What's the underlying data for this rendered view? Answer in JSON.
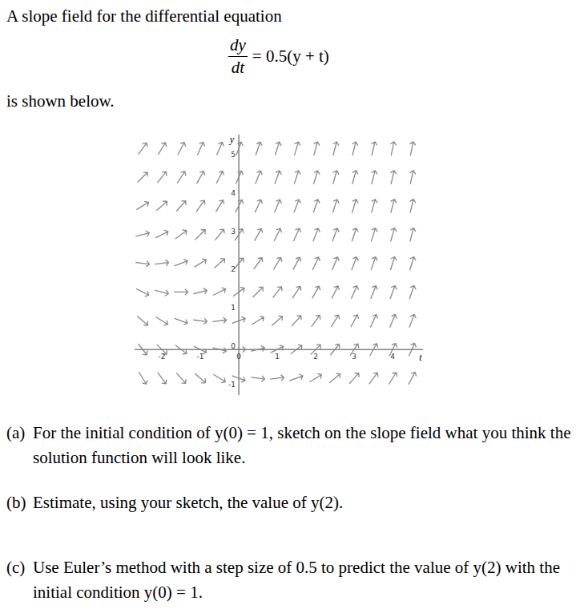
{
  "header": {
    "text": "A slope field for the differential equation",
    "equation": {
      "numerator": "dy",
      "denominator": "dt",
      "rhs": "= 0.5(y + t)"
    },
    "after": "is shown below."
  },
  "chart_data": {
    "type": "vector_field",
    "x_label": "t",
    "y_label": "y",
    "color": "#888888",
    "grid": false,
    "xlim": [
      -2.7,
      4.8
    ],
    "ylim": [
      -1.2,
      5.6
    ],
    "xticks": [
      -2,
      -1,
      0,
      1,
      2,
      3,
      4
    ],
    "yticks": [
      -1,
      0,
      1,
      2,
      3,
      4,
      5
    ],
    "x": [
      -2.5,
      -2,
      -1.5,
      -1,
      -0.5,
      0,
      0.5,
      1,
      1.5,
      2,
      2.5,
      3,
      3.5,
      4,
      4.5
    ],
    "y": [
      -0.75,
      0,
      0.75,
      1.5,
      2.25,
      3,
      3.75,
      4.5,
      5.25
    ],
    "slopes": [
      [
        -1.625,
        -1.375,
        -1.125,
        -0.875,
        -0.625,
        -0.375,
        -0.125,
        0.125,
        0.375,
        0.625,
        0.875,
        1.125,
        1.375,
        1.625,
        1.875
      ],
      [
        -1.25,
        -1,
        -0.75,
        -0.5,
        -0.25,
        0,
        0.25,
        0.5,
        0.75,
        1,
        1.25,
        1.5,
        1.75,
        2,
        2.25
      ],
      [
        -0.875,
        -0.625,
        -0.375,
        -0.125,
        0.125,
        0.375,
        0.625,
        0.875,
        1.125,
        1.375,
        1.625,
        1.875,
        2.125,
        2.375,
        2.625
      ],
      [
        -0.5,
        -0.25,
        0,
        0.25,
        0.5,
        0.75,
        1,
        1.25,
        1.5,
        1.75,
        2,
        2.25,
        2.5,
        2.75,
        3
      ],
      [
        -0.125,
        0.125,
        0.375,
        0.625,
        0.875,
        1.125,
        1.375,
        1.625,
        1.875,
        2.125,
        2.375,
        2.625,
        2.875,
        3.125,
        3.375
      ],
      [
        0.25,
        0.5,
        0.75,
        1,
        1.25,
        1.5,
        1.75,
        2,
        2.25,
        2.5,
        2.75,
        3,
        3.25,
        3.5,
        3.75
      ],
      [
        0.625,
        0.875,
        1.125,
        1.375,
        1.625,
        1.875,
        2.125,
        2.375,
        2.625,
        2.875,
        3.125,
        3.375,
        3.625,
        3.875,
        4.125
      ],
      [
        1,
        1.25,
        1.5,
        1.75,
        2,
        2.25,
        2.5,
        2.75,
        3,
        3.25,
        3.5,
        3.75,
        4,
        4.25,
        4.5
      ],
      [
        1.375,
        1.625,
        1.875,
        2.125,
        2.375,
        2.625,
        2.875,
        3.125,
        3.375,
        3.625,
        3.875,
        4.125,
        4.375,
        4.625,
        4.875
      ]
    ]
  },
  "questions": [
    {
      "label": "(a)",
      "text": "For the initial condition of y(0) = 1, sketch on the slope field what you think the solution function will look like."
    },
    {
      "label": "(b)",
      "text": "Estimate, using your sketch, the value of y(2)."
    },
    {
      "label": "(c)",
      "text": "Use Euler’s method with a step size of 0.5 to predict the value of y(2) with the initial condition y(0) = 1."
    }
  ]
}
